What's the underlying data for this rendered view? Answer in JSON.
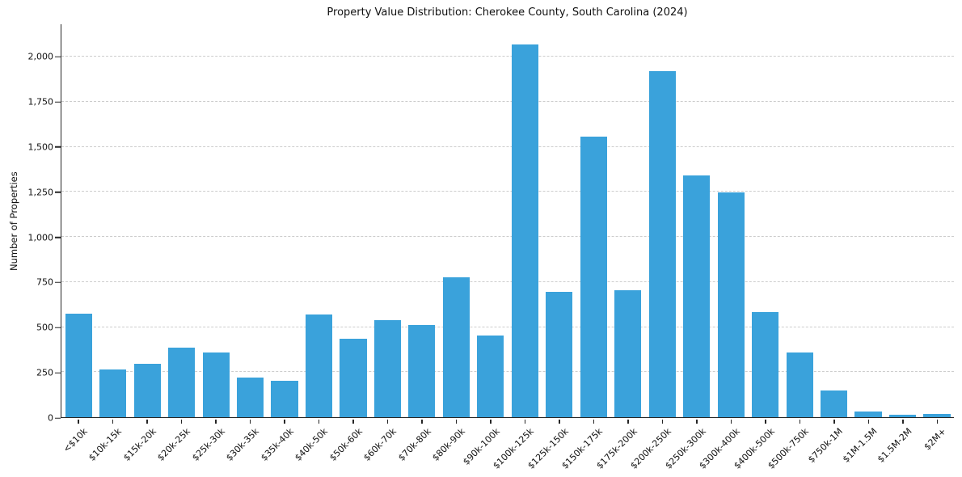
{
  "chart_data": {
    "type": "bar",
    "title": "Property Value Distribution: Cherokee County, South Carolina (2024)",
    "xlabel": "",
    "ylabel": "Number of Properties",
    "categories": [
      "<$10k",
      "$10k-15k",
      "$15k-20k",
      "$20k-25k",
      "$25k-30k",
      "$30k-35k",
      "$35k-40k",
      "$40k-50k",
      "$50k-60k",
      "$60k-70k",
      "$70k-80k",
      "$80k-90k",
      "$90k-100k",
      "$100k-125k",
      "$125k-150k",
      "$150k-175k",
      "$175k-200k",
      "$200k-250k",
      "$250k-300k",
      "$300k-400k",
      "$400k-500k",
      "$500k-750k",
      "$750k-1M",
      "$1M-1.5M",
      "$1.5M-2M",
      "$2M+"
    ],
    "values": [
      575,
      265,
      295,
      385,
      360,
      220,
      200,
      570,
      435,
      540,
      510,
      775,
      455,
      2070,
      695,
      1555,
      705,
      1920,
      1340,
      1245,
      585,
      360,
      150,
      30,
      15,
      20
    ],
    "ylim": [
      0,
      2180
    ],
    "yticks": [
      0,
      250,
      500,
      750,
      1000,
      1250,
      1500,
      1750,
      2000
    ],
    "ytick_labels": [
      "0",
      "250",
      "500",
      "750",
      "1,000",
      "1,250",
      "1,500",
      "1,750",
      "2,000"
    ],
    "bar_color": "#3aa2db",
    "grid": "horizontal-dashed",
    "grid_color": "#cdcdcd",
    "spine_color": "#262626",
    "legend": "none",
    "x_tick_rotation": 45
  }
}
